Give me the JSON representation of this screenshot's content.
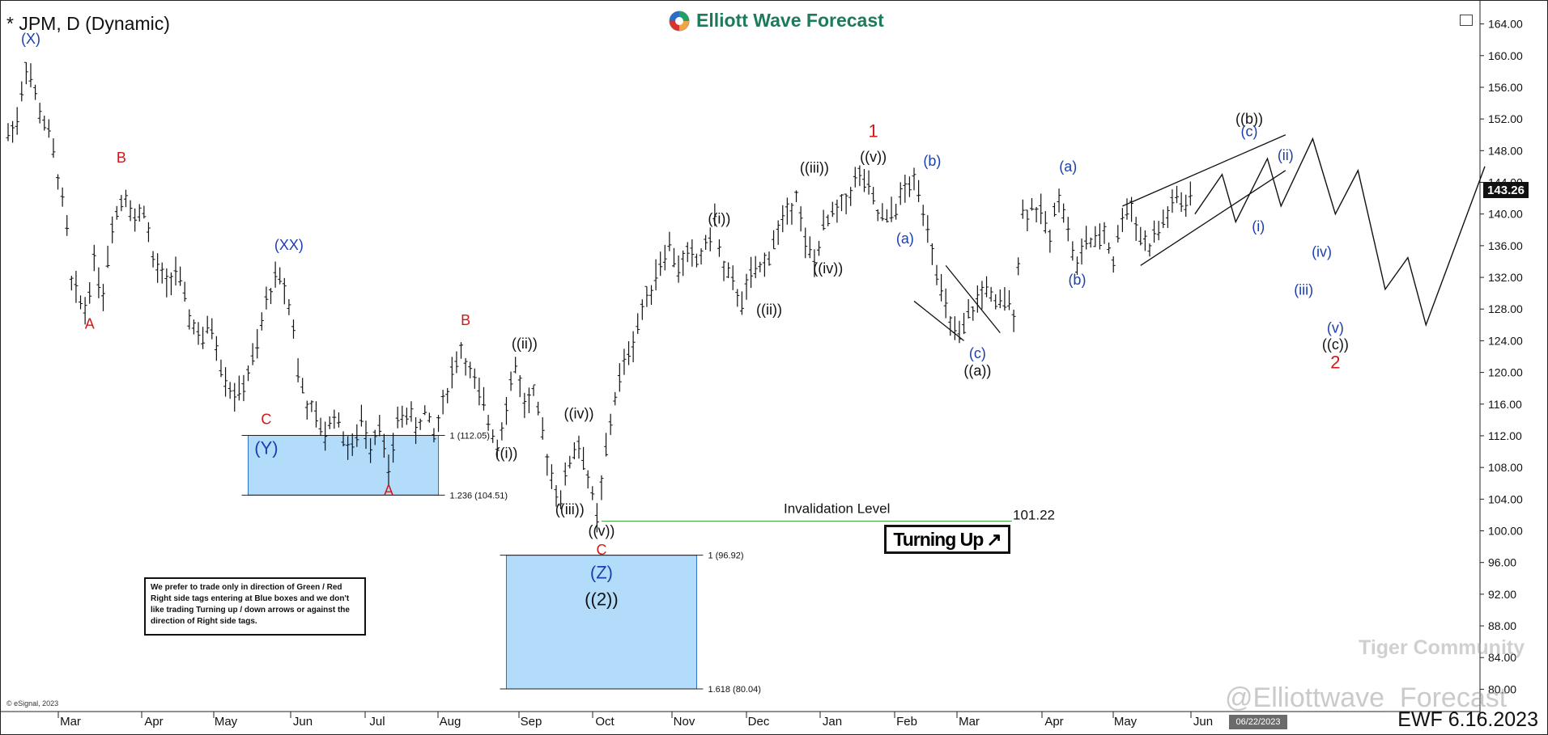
{
  "header": {
    "title": "* JPM, D (Dynamic)",
    "logo_text": "Elliott Wave Forecast"
  },
  "note_text": "We prefer to trade only in direction of Green / Red Right side tags entering at Blue boxes and we don't like trading Turning up / down arrows or against the direction of Right side tags.",
  "turning_label": "Turning Up",
  "invalidation": {
    "label": "Invalidation Level",
    "value": "101.22",
    "price": 101.22
  },
  "current_price_tag": "143.26",
  "date_tag": "06/22/2023",
  "footer": {
    "ewf_date": "EWF 6.16.2023",
    "watermark": "@Elliottwave_Forecast",
    "tiger": "Tiger Community",
    "esignal": "© eSignal, 2023"
  },
  "colors": {
    "blue_box": "#b3dcfb",
    "wave_blue": "#1b3fb0",
    "wave_red": "#d01a1a",
    "wave_black": "#111111",
    "invalidation_line": "#3cb043"
  },
  "chart_data": {
    "type": "ohlc",
    "title": "* JPM, D (Dynamic)",
    "ylim": [
      78.0,
      166.0
    ],
    "y_ticks": [
      "164.00",
      "160.00",
      "156.00",
      "152.00",
      "148.00",
      "144.00",
      "140.00",
      "136.00",
      "132.00",
      "128.00",
      "124.00",
      "120.00",
      "116.00",
      "112.00",
      "108.00",
      "104.00",
      "100.00",
      "96.00",
      "92.00",
      "88.00",
      "84.00",
      "80.00"
    ],
    "x_ticks": [
      "Mar",
      "Apr",
      "May",
      "Jun",
      "Jul",
      "Aug",
      "Sep",
      "Oct",
      "Nov",
      "Dec",
      "Jan",
      "Feb",
      "Mar",
      "Apr",
      "May",
      "Jun"
    ],
    "price_path": [
      {
        "t": 0,
        "p": 150
      },
      {
        "t": 2,
        "p": 152
      },
      {
        "t": 4,
        "p": 159
      },
      {
        "t": 7,
        "p": 153
      },
      {
        "t": 9,
        "p": 150
      },
      {
        "t": 11,
        "p": 145
      },
      {
        "t": 13,
        "p": 138
      },
      {
        "t": 14,
        "p": 131
      },
      {
        "t": 17,
        "p": 128
      },
      {
        "t": 19,
        "p": 134
      },
      {
        "t": 21,
        "p": 130
      },
      {
        "t": 23,
        "p": 139
      },
      {
        "t": 26,
        "p": 143
      },
      {
        "t": 28,
        "p": 139
      },
      {
        "t": 30,
        "p": 141
      },
      {
        "t": 32,
        "p": 134
      },
      {
        "t": 35,
        "p": 131
      },
      {
        "t": 37,
        "p": 133
      },
      {
        "t": 40,
        "p": 127
      },
      {
        "t": 43,
        "p": 124
      },
      {
        "t": 45,
        "p": 126
      },
      {
        "t": 47,
        "p": 121
      },
      {
        "t": 49,
        "p": 118
      },
      {
        "t": 51,
        "p": 117
      },
      {
        "t": 53,
        "p": 120
      },
      {
        "t": 55,
        "p": 123
      },
      {
        "t": 57,
        "p": 129
      },
      {
        "t": 59,
        "p": 132
      },
      {
        "t": 61,
        "p": 131
      },
      {
        "t": 63,
        "p": 126
      },
      {
        "t": 64,
        "p": 120
      },
      {
        "t": 66,
        "p": 116
      },
      {
        "t": 68,
        "p": 114
      },
      {
        "t": 70,
        "p": 112
      },
      {
        "t": 72,
        "p": 115
      },
      {
        "t": 74,
        "p": 112
      },
      {
        "t": 76,
        "p": 110
      },
      {
        "t": 78,
        "p": 114
      },
      {
        "t": 80,
        "p": 111
      },
      {
        "t": 82,
        "p": 114
      },
      {
        "t": 84,
        "p": 107
      },
      {
        "t": 86,
        "p": 114
      },
      {
        "t": 88,
        "p": 115
      },
      {
        "t": 90,
        "p": 113
      },
      {
        "t": 92,
        "p": 115
      },
      {
        "t": 94,
        "p": 112
      },
      {
        "t": 96,
        "p": 116
      },
      {
        "t": 98,
        "p": 120
      },
      {
        "t": 100,
        "p": 123
      },
      {
        "t": 102,
        "p": 120
      },
      {
        "t": 104,
        "p": 117
      },
      {
        "t": 106,
        "p": 114
      },
      {
        "t": 108,
        "p": 111
      },
      {
        "t": 110,
        "p": 116
      },
      {
        "t": 112,
        "p": 121
      },
      {
        "t": 114,
        "p": 116
      },
      {
        "t": 116,
        "p": 117
      },
      {
        "t": 118,
        "p": 112
      },
      {
        "t": 120,
        "p": 107
      },
      {
        "t": 122,
        "p": 104
      },
      {
        "t": 124,
        "p": 109
      },
      {
        "t": 126,
        "p": 111
      },
      {
        "t": 128,
        "p": 107
      },
      {
        "t": 130,
        "p": 101.2
      },
      {
        "t": 132,
        "p": 110
      },
      {
        "t": 134,
        "p": 117
      },
      {
        "t": 136,
        "p": 121
      },
      {
        "t": 138,
        "p": 124
      },
      {
        "t": 140,
        "p": 128
      },
      {
        "t": 142,
        "p": 131
      },
      {
        "t": 144,
        "p": 134
      },
      {
        "t": 146,
        "p": 136
      },
      {
        "t": 148,
        "p": 133
      },
      {
        "t": 150,
        "p": 135
      },
      {
        "t": 152,
        "p": 134
      },
      {
        "t": 154,
        "p": 136
      },
      {
        "t": 156,
        "p": 139
      },
      {
        "t": 158,
        "p": 133
      },
      {
        "t": 160,
        "p": 131
      },
      {
        "t": 162,
        "p": 129
      },
      {
        "t": 164,
        "p": 132
      },
      {
        "t": 166,
        "p": 133
      },
      {
        "t": 168,
        "p": 135
      },
      {
        "t": 170,
        "p": 138
      },
      {
        "t": 172,
        "p": 140
      },
      {
        "t": 174,
        "p": 143
      },
      {
        "t": 176,
        "p": 136
      },
      {
        "t": 178,
        "p": 134
      },
      {
        "t": 180,
        "p": 138
      },
      {
        "t": 182,
        "p": 140
      },
      {
        "t": 184,
        "p": 141
      },
      {
        "t": 186,
        "p": 143
      },
      {
        "t": 188,
        "p": 145
      },
      {
        "t": 190,
        "p": 143
      },
      {
        "t": 192,
        "p": 140
      },
      {
        "t": 194,
        "p": 139
      },
      {
        "t": 196,
        "p": 141
      },
      {
        "t": 198,
        "p": 143
      },
      {
        "t": 200,
        "p": 144
      },
      {
        "t": 202,
        "p": 141
      },
      {
        "t": 204,
        "p": 136
      },
      {
        "t": 206,
        "p": 130
      },
      {
        "t": 208,
        "p": 126
      },
      {
        "t": 210,
        "p": 124
      },
      {
        "t": 212,
        "p": 127
      },
      {
        "t": 214,
        "p": 129
      },
      {
        "t": 216,
        "p": 131
      },
      {
        "t": 218,
        "p": 128
      },
      {
        "t": 220,
        "p": 129
      },
      {
        "t": 222,
        "p": 128
      },
      {
        "t": 224,
        "p": 140
      },
      {
        "t": 226,
        "p": 141
      },
      {
        "t": 228,
        "p": 140
      },
      {
        "t": 230,
        "p": 137
      },
      {
        "t": 232,
        "p": 143
      },
      {
        "t": 234,
        "p": 138
      },
      {
        "t": 236,
        "p": 133
      },
      {
        "t": 238,
        "p": 137
      },
      {
        "t": 240,
        "p": 136
      },
      {
        "t": 242,
        "p": 138
      },
      {
        "t": 244,
        "p": 134
      },
      {
        "t": 246,
        "p": 140
      },
      {
        "t": 248,
        "p": 141
      },
      {
        "t": 250,
        "p": 137
      },
      {
        "t": 252,
        "p": 136
      },
      {
        "t": 254,
        "p": 138
      },
      {
        "t": 256,
        "p": 140
      },
      {
        "t": 258,
        "p": 142
      },
      {
        "t": 260,
        "p": 141
      },
      {
        "t": 262,
        "p": 143
      }
    ],
    "projection": [
      {
        "t": 262,
        "p": 140
      },
      {
        "t": 268,
        "p": 145
      },
      {
        "t": 271,
        "p": 139
      },
      {
        "t": 278,
        "p": 147
      },
      {
        "t": 281,
        "p": 141
      },
      {
        "t": 288,
        "p": 149.5
      },
      {
        "t": 293,
        "p": 140
      },
      {
        "t": 298,
        "p": 145.5
      },
      {
        "t": 304,
        "p": 130.5
      },
      {
        "t": 309,
        "p": 134.5
      },
      {
        "t": 313,
        "p": 126
      },
      {
        "t": 326,
        "p": 146
      }
    ],
    "boxes": [
      {
        "t0": 53,
        "t1": 95,
        "top": 112.05,
        "bottom": 104.51,
        "label_top": "1 (112.05)",
        "label_bottom": "1.236 (104.51)"
      },
      {
        "t0": 110,
        "t1": 152,
        "top": 96.92,
        "bottom": 80.04,
        "label_top": "1 (96.92)",
        "label_bottom": "1.618 (80.04)"
      }
    ],
    "wave_labels": [
      {
        "text": "(X)",
        "t": 5,
        "p": 161.5,
        "color": "blue"
      },
      {
        "text": "B",
        "t": 25,
        "p": 146.5,
        "color": "red"
      },
      {
        "text": "A",
        "t": 18,
        "p": 125.5,
        "color": "red"
      },
      {
        "text": "(XX)",
        "t": 62,
        "p": 135.5,
        "color": "blue"
      },
      {
        "text": "C",
        "t": 57,
        "p": 113.5,
        "color": "red"
      },
      {
        "text": "(Y)",
        "t": 57,
        "p": 109.7,
        "color": "blue",
        "size": "big"
      },
      {
        "text": "A",
        "t": 84,
        "p": 104.5,
        "color": "red"
      },
      {
        "text": "B",
        "t": 101,
        "p": 126.0,
        "color": "red"
      },
      {
        "text": "((ii))",
        "t": 114,
        "p": 123.0,
        "color": "black"
      },
      {
        "text": "((i))",
        "t": 110,
        "p": 109.2,
        "color": "black"
      },
      {
        "text": "((iv))",
        "t": 126,
        "p": 114.2,
        "color": "black"
      },
      {
        "text": "((iii))",
        "t": 124,
        "p": 102.1,
        "color": "black"
      },
      {
        "text": "((v))",
        "t": 131,
        "p": 99.4,
        "color": "black"
      },
      {
        "text": "C",
        "t": 131,
        "p": 97.0,
        "color": "red"
      },
      {
        "text": "(Z)",
        "t": 131,
        "p": 94.0,
        "color": "blue",
        "size": "big"
      },
      {
        "text": "((2))",
        "t": 131,
        "p": 90.6,
        "color": "black",
        "size": "big"
      },
      {
        "text": "((i))",
        "t": 157,
        "p": 138.8,
        "color": "black"
      },
      {
        "text": "((ii))",
        "t": 168,
        "p": 127.3,
        "color": "black"
      },
      {
        "text": "((iii))",
        "t": 178,
        "p": 145.2,
        "color": "black"
      },
      {
        "text": "((iv))",
        "t": 181,
        "p": 132.5,
        "color": "black"
      },
      {
        "text": "1",
        "t": 191,
        "p": 149.7,
        "color": "red",
        "size": "big"
      },
      {
        "text": "((v))",
        "t": 191,
        "p": 146.6,
        "color": "black"
      },
      {
        "text": "(a)",
        "t": 198,
        "p": 136.3,
        "color": "blue"
      },
      {
        "text": "(b)",
        "t": 204,
        "p": 146.1,
        "color": "blue"
      },
      {
        "text": "(c)",
        "t": 214,
        "p": 121.8,
        "color": "blue"
      },
      {
        "text": "((a))",
        "t": 214,
        "p": 119.6,
        "color": "black"
      },
      {
        "text": "(a)",
        "t": 234,
        "p": 145.4,
        "color": "blue"
      },
      {
        "text": "(b)",
        "t": 236,
        "p": 131.1,
        "color": "blue"
      },
      {
        "text": "((b))",
        "t": 274,
        "p": 151.4,
        "color": "black"
      },
      {
        "text": "(c)",
        "t": 274,
        "p": 149.8,
        "color": "blue"
      },
      {
        "text": "(ii)",
        "t": 282,
        "p": 146.8,
        "color": "blue"
      },
      {
        "text": "(i)",
        "t": 276,
        "p": 137.8,
        "color": "blue"
      },
      {
        "text": "(iii)",
        "t": 286,
        "p": 129.8,
        "color": "blue"
      },
      {
        "text": "(iv)",
        "t": 290,
        "p": 134.6,
        "color": "blue"
      },
      {
        "text": "(v)",
        "t": 293,
        "p": 125.0,
        "color": "blue"
      },
      {
        "text": "((c))",
        "t": 293,
        "p": 122.9,
        "color": "black"
      },
      {
        "text": "2",
        "t": 293,
        "p": 120.5,
        "color": "red",
        "size": "big"
      }
    ]
  }
}
